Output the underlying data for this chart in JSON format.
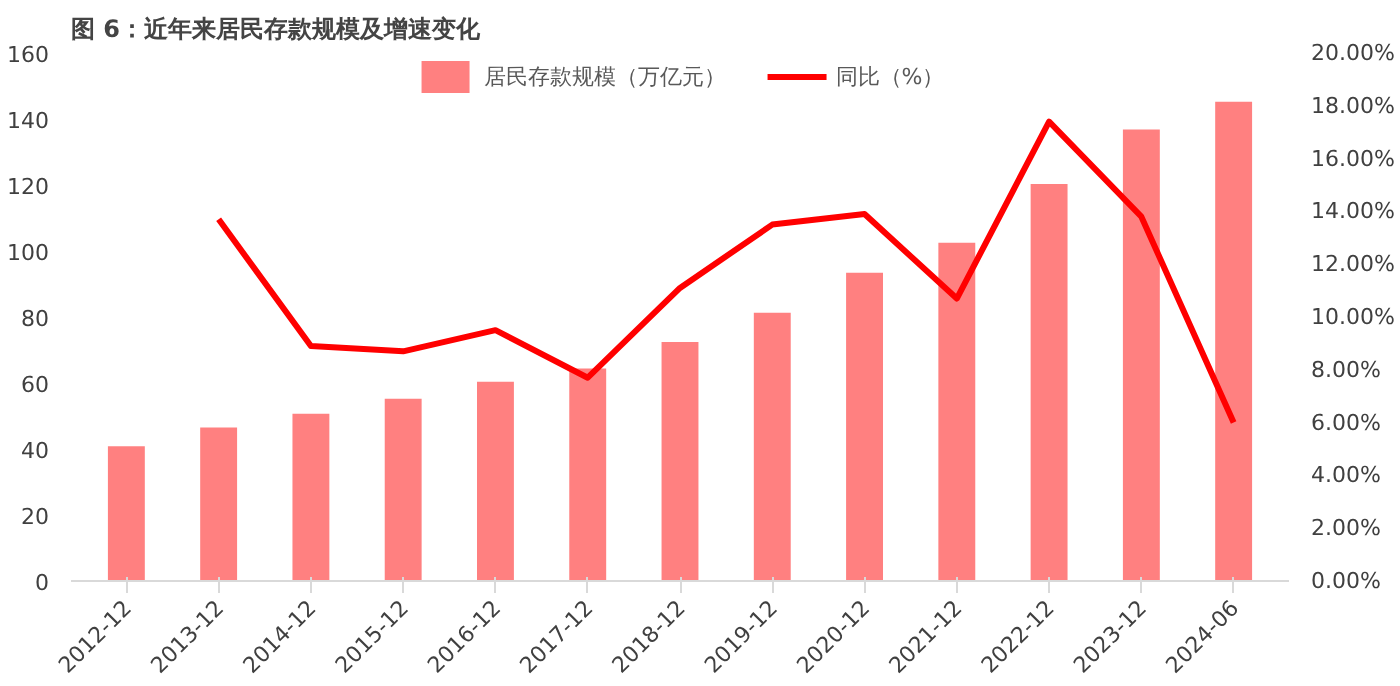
{
  "chart_data": {
    "type": "bar",
    "title": "图 6：近年来居民存款规模及增速变化",
    "categories": [
      "2012-12",
      "2013-12",
      "2014-12",
      "2015-12",
      "2016-12",
      "2017-12",
      "2018-12",
      "2019-12",
      "2020-12",
      "2021-12",
      "2022-12",
      "2023-12",
      "2024-06"
    ],
    "series": [
      {
        "name": "居民存款规模（万亿元）",
        "color": "#ff8080",
        "values": [
          40.8,
          46.5,
          50.7,
          55.2,
          60.4,
          64.4,
          72.4,
          81.3,
          93.4,
          102.5,
          120.3,
          136.8,
          145.2
        ]
      },
      {
        "name": "同比（%）",
        "type": "line",
        "axis": "y2",
        "color": "#ff0000",
        "values": [
          null,
          13.7,
          8.9,
          8.7,
          9.5,
          7.7,
          11.1,
          13.5,
          13.9,
          10.7,
          17.4,
          13.8,
          6.0
        ]
      }
    ],
    "ylim": [
      0,
      160
    ],
    "yticks": [
      0,
      20,
      40,
      60,
      80,
      100,
      120,
      140,
      160
    ],
    "y2lim": [
      0,
      20
    ],
    "y2ticks": [
      {
        "value": 0,
        "label": "0.00%"
      },
      {
        "value": 2,
        "label": "2.00%"
      },
      {
        "value": 4,
        "label": "4.00%"
      },
      {
        "value": 6,
        "label": "6.00%"
      },
      {
        "value": 8,
        "label": "8.00%"
      },
      {
        "value": 10,
        "label": "10.00%"
      },
      {
        "value": 12,
        "label": "12.00%"
      },
      {
        "value": 14,
        "label": "14.00%"
      },
      {
        "value": 16,
        "label": "16.00%"
      },
      {
        "value": 18,
        "label": "18.00%"
      },
      {
        "value": 20,
        "label": "20.00%"
      }
    ],
    "grid": false,
    "legend": "top"
  }
}
